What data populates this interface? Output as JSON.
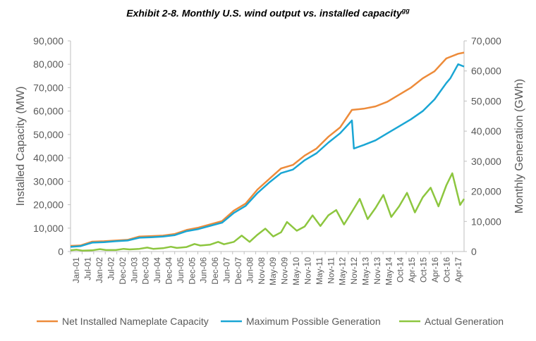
{
  "title": "Exhibit 2-8. Monthly U.S. wind output vs. installed capacity",
  "title_footnote": "gg",
  "chart_data": {
    "type": "line",
    "title": "Exhibit 2-8. Monthly U.S. wind output vs. installed capacity",
    "ylabel_left": "Installed Capacity (MW)",
    "ylabel_right": "Monthly Generation (GWh)",
    "xlabel": "",
    "x_range": [
      "2001-01",
      "2017-09"
    ],
    "ylim_left": [
      0,
      90000
    ],
    "ylim_right": [
      0,
      70000
    ],
    "yticks_left": [
      "0",
      "10,000",
      "20,000",
      "30,000",
      "40,000",
      "50,000",
      "60,000",
      "70,000",
      "80,000",
      "90,000"
    ],
    "yticks_right": [
      "0",
      "10,000",
      "20,000",
      "30,000",
      "40,000",
      "50,000",
      "60,000",
      "70,000"
    ],
    "xticks": [
      "Jan-01",
      "Jul-01",
      "Jan-02",
      "Jul-02",
      "Dec-02",
      "Jun-03",
      "Dec-03",
      "Jun-04",
      "Dec-04",
      "Jun-05",
      "Dec-05",
      "Jun-06",
      "Dec-06",
      "Jun-07",
      "Dec-07",
      "Jun-08",
      "Nov-08",
      "May-09",
      "Nov-09",
      "May-10",
      "Nov-10",
      "May-11",
      "Nov-11",
      "May-12",
      "Nov-12",
      "May-13",
      "Nov-13",
      "May-14",
      "Oct-14",
      "Apr-15",
      "Oct-15",
      "Apr-16",
      "Oct-16",
      "Apr-17"
    ],
    "grid": false,
    "legend_position": "bottom",
    "series": [
      {
        "name": "Net Installed Nameplate Capacity",
        "color": "#ED8B3A",
        "axis": "left",
        "points": [
          [
            "2001-01",
            2400
          ],
          [
            "2001-06",
            2600
          ],
          [
            "2001-12",
            4200
          ],
          [
            "2002-06",
            4400
          ],
          [
            "2002-12",
            4700
          ],
          [
            "2003-06",
            5000
          ],
          [
            "2003-12",
            6400
          ],
          [
            "2004-06",
            6600
          ],
          [
            "2004-12",
            6800
          ],
          [
            "2005-06",
            7500
          ],
          [
            "2005-12",
            9200
          ],
          [
            "2006-06",
            10200
          ],
          [
            "2006-12",
            11600
          ],
          [
            "2007-06",
            13000
          ],
          [
            "2007-12",
            17500
          ],
          [
            "2008-06",
            20500
          ],
          [
            "2008-12",
            26500
          ],
          [
            "2009-06",
            31000
          ],
          [
            "2009-12",
            35500
          ],
          [
            "2010-06",
            37000
          ],
          [
            "2010-12",
            41000
          ],
          [
            "2011-06",
            44000
          ],
          [
            "2011-12",
            49000
          ],
          [
            "2012-06",
            53000
          ],
          [
            "2012-12",
            60500
          ],
          [
            "2013-06",
            61000
          ],
          [
            "2013-12",
            62000
          ],
          [
            "2014-06",
            64000
          ],
          [
            "2014-12",
            67000
          ],
          [
            "2015-06",
            70000
          ],
          [
            "2015-12",
            74000
          ],
          [
            "2016-06",
            77000
          ],
          [
            "2016-12",
            82500
          ],
          [
            "2017-06",
            84500
          ],
          [
            "2017-09",
            85000
          ]
        ]
      },
      {
        "name": "Maximum Possible  Generation",
        "color": "#1AA6D4",
        "axis": "left",
        "points": [
          [
            "2001-01",
            2000
          ],
          [
            "2001-06",
            2300
          ],
          [
            "2001-12",
            3800
          ],
          [
            "2002-06",
            4000
          ],
          [
            "2002-12",
            4400
          ],
          [
            "2003-06",
            4700
          ],
          [
            "2003-12",
            5900
          ],
          [
            "2004-06",
            6100
          ],
          [
            "2004-12",
            6400
          ],
          [
            "2005-06",
            7000
          ],
          [
            "2005-12",
            8700
          ],
          [
            "2006-06",
            9600
          ],
          [
            "2006-12",
            11000
          ],
          [
            "2007-06",
            12300
          ],
          [
            "2007-12",
            16500
          ],
          [
            "2008-06",
            19500
          ],
          [
            "2008-12",
            25000
          ],
          [
            "2009-06",
            29500
          ],
          [
            "2009-12",
            33500
          ],
          [
            "2010-06",
            35000
          ],
          [
            "2010-12",
            39000
          ],
          [
            "2011-06",
            42000
          ],
          [
            "2011-12",
            46500
          ],
          [
            "2012-06",
            50500
          ],
          [
            "2012-12",
            56000
          ],
          [
            "2013-01",
            44000
          ],
          [
            "2013-06",
            45500
          ],
          [
            "2013-12",
            47500
          ],
          [
            "2014-06",
            50500
          ],
          [
            "2014-12",
            53500
          ],
          [
            "2015-06",
            56500
          ],
          [
            "2015-12",
            60000
          ],
          [
            "2016-06",
            65000
          ],
          [
            "2016-12",
            72000
          ],
          [
            "2017-02",
            74000
          ],
          [
            "2017-06",
            80000
          ],
          [
            "2017-09",
            79000
          ]
        ]
      },
      {
        "name": "Actual Generation",
        "color": "#8DC63F",
        "axis": "right",
        "points": [
          [
            "2001-01",
            400
          ],
          [
            "2001-04",
            600
          ],
          [
            "2001-07",
            300
          ],
          [
            "2001-12",
            400
          ],
          [
            "2002-04",
            800
          ],
          [
            "2002-07",
            500
          ],
          [
            "2002-12",
            500
          ],
          [
            "2003-04",
            900
          ],
          [
            "2003-07",
            700
          ],
          [
            "2003-12",
            900
          ],
          [
            "2004-04",
            1300
          ],
          [
            "2004-07",
            900
          ],
          [
            "2004-12",
            1100
          ],
          [
            "2005-04",
            1600
          ],
          [
            "2005-07",
            1200
          ],
          [
            "2005-12",
            1500
          ],
          [
            "2006-04",
            2500
          ],
          [
            "2006-07",
            2000
          ],
          [
            "2006-12",
            2300
          ],
          [
            "2007-04",
            3200
          ],
          [
            "2007-07",
            2400
          ],
          [
            "2007-12",
            3200
          ],
          [
            "2008-04",
            5300
          ],
          [
            "2008-08",
            3200
          ],
          [
            "2008-12",
            5600
          ],
          [
            "2009-04",
            7600
          ],
          [
            "2009-08",
            5000
          ],
          [
            "2009-12",
            6400
          ],
          [
            "2010-03",
            9800
          ],
          [
            "2010-08",
            6900
          ],
          [
            "2010-12",
            8300
          ],
          [
            "2011-04",
            12000
          ],
          [
            "2011-08",
            8500
          ],
          [
            "2011-12",
            12000
          ],
          [
            "2012-04",
            13800
          ],
          [
            "2012-08",
            9000
          ],
          [
            "2012-12",
            13200
          ],
          [
            "2013-04",
            17500
          ],
          [
            "2013-08",
            10800
          ],
          [
            "2013-12",
            14500
          ],
          [
            "2014-04",
            18800
          ],
          [
            "2014-08",
            11500
          ],
          [
            "2014-12",
            15000
          ],
          [
            "2015-04",
            19500
          ],
          [
            "2015-08",
            13000
          ],
          [
            "2015-12",
            18000
          ],
          [
            "2016-04",
            21200
          ],
          [
            "2016-08",
            15000
          ],
          [
            "2016-12",
            22000
          ],
          [
            "2017-03",
            26000
          ],
          [
            "2017-07",
            15500
          ],
          [
            "2017-09",
            17500
          ]
        ]
      }
    ]
  }
}
